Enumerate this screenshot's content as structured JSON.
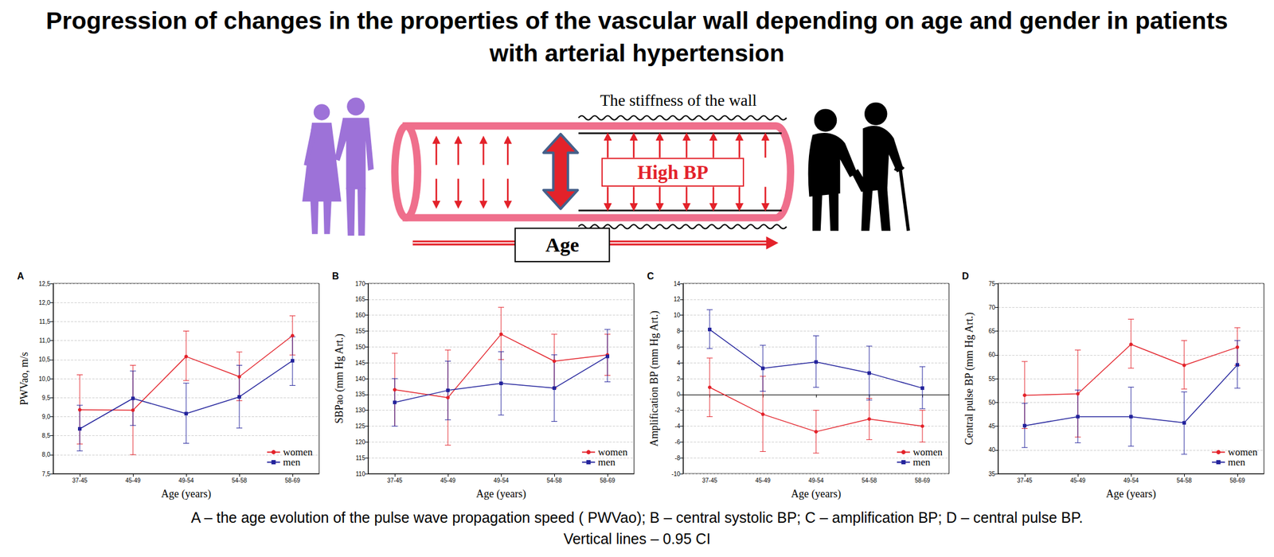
{
  "title": "Progression of changes in the properties of the vascular wall depending on age and gender in patients with arterial hypertension",
  "illustration": {
    "wall_label": "The stiffness of the wall",
    "bp_label": "High BP",
    "age_label": "Age"
  },
  "caption": [
    "A – the age evolution of the pulse wave propagation speed ( PWVao); B – central systolic BP; C – amplification BP; D – central pulse BP.",
    "Vertical lines – 0.95 CI"
  ],
  "chart_data": [
    {
      "type": "line",
      "title": "A",
      "x_label": "Age (years)",
      "y_label": "PWVao, m/s",
      "categories": [
        "37-45",
        "45-49",
        "49-54",
        "54-58",
        "58-69"
      ],
      "series": [
        {
          "name": "women",
          "color": "#e3222a",
          "marker": "circle",
          "line_style": "solid",
          "values": [
            9.18,
            9.17,
            10.58,
            10.05,
            11.13
          ],
          "ci_low": [
            8.28,
            8.0,
            9.95,
            9.42,
            10.62
          ],
          "ci_high": [
            10.1,
            10.35,
            11.25,
            10.7,
            11.65
          ]
        },
        {
          "name": "men",
          "color": "#23239c",
          "marker": "square",
          "line_style": "solid",
          "values": [
            8.68,
            9.48,
            9.08,
            9.52,
            10.47
          ],
          "ci_low": [
            8.1,
            8.77,
            8.3,
            8.7,
            9.82
          ],
          "ci_high": [
            9.3,
            10.2,
            9.88,
            10.35,
            11.1
          ]
        }
      ],
      "ylim": [
        7.5,
        12.5
      ],
      "yticks": [
        {
          "value": 7.5,
          "label": "7,5"
        },
        {
          "value": 8,
          "label": "8,0"
        },
        {
          "value": 8.5,
          "label": "8,5"
        },
        {
          "value": 9,
          "label": "9,0"
        },
        {
          "value": 9.5,
          "label": "9,5"
        },
        {
          "value": 10,
          "label": "10,0"
        },
        {
          "value": 10.5,
          "label": "10,5"
        },
        {
          "value": 11,
          "label": "11,0"
        },
        {
          "value": 11.5,
          "label": "11,5"
        },
        {
          "value": 12,
          "label": "12,0"
        },
        {
          "value": 12.5,
          "label": "12,5"
        }
      ],
      "grid": true,
      "legend": "lower right"
    },
    {
      "type": "line",
      "title": "B",
      "x_label": "Age (years)",
      "y_label": "SBPao (mm Hg Art.)",
      "categories": [
        "37-45",
        "45-49",
        "49-54",
        "54-58",
        "58-69"
      ],
      "series": [
        {
          "name": "women",
          "color": "#e3222a",
          "marker": "circle",
          "line_style": "solid",
          "values": [
            136.5,
            134,
            154,
            145.5,
            147.5
          ],
          "ci_low": [
            125,
            119,
            146,
            137,
            141
          ],
          "ci_high": [
            148,
            149,
            162.5,
            154,
            154
          ]
        },
        {
          "name": "men",
          "color": "#23239c",
          "marker": "square",
          "line_style": "solid",
          "values": [
            132.5,
            136.3,
            138.5,
            137,
            147
          ],
          "ci_low": [
            125,
            127,
            128.5,
            126.5,
            139
          ],
          "ci_high": [
            140,
            145.5,
            148.5,
            147.5,
            155.5
          ]
        }
      ],
      "ylim": [
        110,
        170
      ],
      "yticks": [
        110,
        115,
        120,
        125,
        130,
        135,
        140,
        145,
        150,
        155,
        160,
        165,
        170
      ],
      "grid": true,
      "legend": "lower right"
    },
    {
      "type": "line",
      "title": "C",
      "x_label": "Age (years)",
      "y_label": "Amplification BP (mm Hg Art.)",
      "categories": [
        "37-45",
        "45-49",
        "49-54",
        "54-58",
        "58-69"
      ],
      "series": [
        {
          "name": "women",
          "color": "#e3222a",
          "marker": "circle",
          "line_style": "solid",
          "values": [
            0.9,
            -2.5,
            -4.7,
            -3.1,
            -4.0
          ],
          "ci_low": [
            -2.8,
            -7.2,
            -7.4,
            -5.7,
            -6.0
          ],
          "ci_high": [
            4.6,
            2.3,
            -2.0,
            -0.5,
            -2.0
          ]
        },
        {
          "name": "men",
          "color": "#23239c",
          "marker": "square",
          "line_style": "solid",
          "values": [
            8.2,
            3.3,
            4.1,
            2.7,
            0.8
          ],
          "ci_low": [
            5.8,
            0.4,
            0.9,
            -0.7,
            -1.8
          ],
          "ci_high": [
            10.7,
            6.2,
            7.4,
            6.1,
            3.5
          ]
        }
      ],
      "ylim": [
        -10,
        14
      ],
      "yticks": [
        -10,
        -8,
        -6,
        -4,
        -2,
        0,
        2,
        4,
        6,
        8,
        10,
        12,
        14
      ],
      "grid": true,
      "legend": "lower right"
    },
    {
      "type": "line",
      "title": "D",
      "x_label": "Age (years)",
      "y_label": "Central pulse BP (mm Hg Art.)",
      "categories": [
        "37-45",
        "45-49",
        "49-54",
        "54-58",
        "58-69"
      ],
      "series": [
        {
          "name": "women",
          "color": "#e3222a",
          "marker": "circle",
          "line_style": "solid",
          "values": [
            51.5,
            51.8,
            62.2,
            57.8,
            61.6
          ],
          "ci_low": [
            44.5,
            42.7,
            57.2,
            52.8,
            57.8
          ],
          "ci_high": [
            58.6,
            61,
            67.5,
            63,
            65.7
          ]
        },
        {
          "name": "men",
          "color": "#23239c",
          "marker": "square",
          "line_style": "solid",
          "values": [
            45.1,
            47,
            47,
            45.7,
            57.9
          ],
          "ci_low": [
            40.5,
            41.5,
            40.8,
            39.1,
            53
          ],
          "ci_high": [
            49.8,
            52.6,
            53.2,
            52.2,
            63
          ]
        }
      ],
      "ylim": [
        35,
        75
      ],
      "yticks": [
        35,
        40,
        45,
        50,
        55,
        60,
        65,
        70,
        75
      ],
      "grid": true,
      "legend": "lower right"
    }
  ]
}
